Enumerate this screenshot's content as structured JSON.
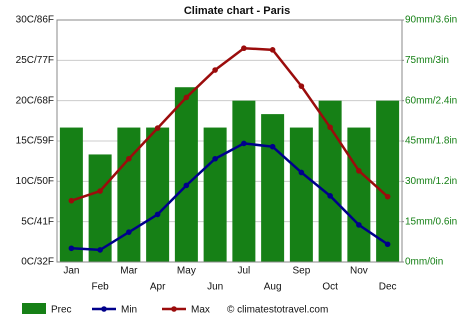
{
  "chart_data": {
    "type": "bar",
    "title": "Climate chart - Paris",
    "categories": [
      "Jan",
      "Feb",
      "Mar",
      "Apr",
      "May",
      "Jun",
      "Jul",
      "Aug",
      "Sep",
      "Oct",
      "Nov",
      "Dec"
    ],
    "series": [
      {
        "name": "Prec",
        "type": "bar",
        "axis": "y2",
        "color": "#168016",
        "values": [
          50,
          40,
          50,
          50,
          65,
          50,
          60,
          55,
          50,
          60,
          50,
          60
        ]
      },
      {
        "name": "Min",
        "type": "line",
        "color": "#00008b",
        "values": [
          1.7,
          1.5,
          3.7,
          5.9,
          9.5,
          12.8,
          14.7,
          14.3,
          11.1,
          8.2,
          4.6,
          2.2
        ]
      },
      {
        "name": "Max",
        "type": "line",
        "color": "#9b0c0c",
        "values": [
          7.6,
          8.8,
          12.8,
          16.6,
          20.4,
          23.8,
          26.5,
          26.3,
          21.8,
          16.7,
          11.3,
          8.1
        ]
      }
    ],
    "ylim": [
      0,
      30
    ],
    "yticks": [
      {
        "value": 0,
        "label": "0C/32F"
      },
      {
        "value": 5,
        "label": "5C/41F"
      },
      {
        "value": 10,
        "label": "10C/50F"
      },
      {
        "value": 15,
        "label": "15C/59F"
      },
      {
        "value": 20,
        "label": "20C/68F"
      },
      {
        "value": 25,
        "label": "25C/77F"
      },
      {
        "value": 30,
        "label": "30C/86F"
      }
    ],
    "y2lim": [
      0,
      90
    ],
    "y2ticks": [
      {
        "value": 0,
        "label": "0mm/0in"
      },
      {
        "value": 15,
        "label": "15mm/0.6in"
      },
      {
        "value": 30,
        "label": "30mm/1.2in"
      },
      {
        "value": 45,
        "label": "45mm/1.8in"
      },
      {
        "value": 60,
        "label": "60mm/2.4in"
      },
      {
        "value": 75,
        "label": "75mm/3in"
      },
      {
        "value": 90,
        "label": "90mm/3.6in"
      }
    ],
    "grid": true,
    "credit": "© climatestotravel.com"
  }
}
